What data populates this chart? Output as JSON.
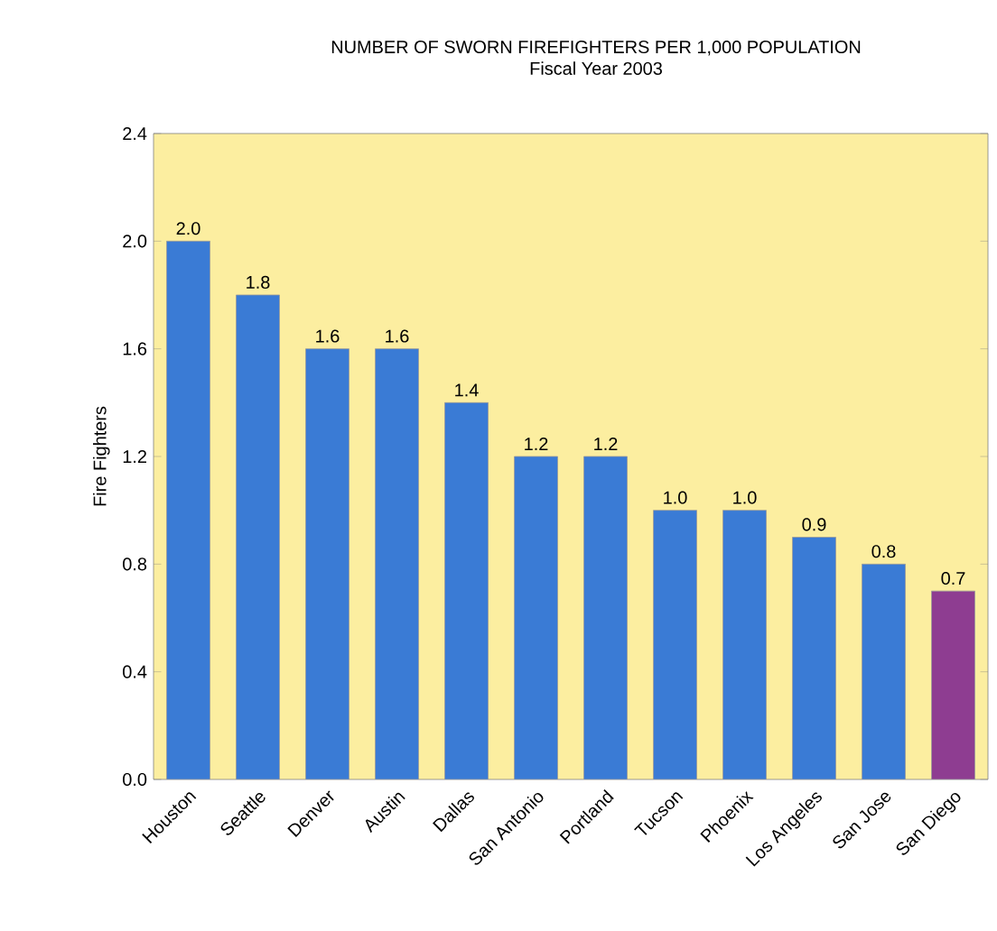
{
  "chart_data": {
    "type": "bar",
    "title": "NUMBER OF SWORN FIREFIGHTERS PER 1,000 POPULATION",
    "subtitle": "Fiscal Year 2003",
    "ylabel": "Fire Fighters",
    "categories": [
      "Houston",
      "Seattle",
      "Denver",
      "Austin",
      "Dallas",
      "San Antonio",
      "Portland",
      "Tucson",
      "Phoenix",
      "Los Angeles",
      "San Jose",
      "San Diego"
    ],
    "values": [
      2.0,
      1.8,
      1.6,
      1.6,
      1.4,
      1.2,
      1.2,
      1.0,
      1.0,
      0.9,
      0.8,
      0.7
    ],
    "colors": [
      "#3a7bd5",
      "#3a7bd5",
      "#3a7bd5",
      "#3a7bd5",
      "#3a7bd5",
      "#3a7bd5",
      "#3a7bd5",
      "#3a7bd5",
      "#3a7bd5",
      "#3a7bd5",
      "#3a7bd5",
      "#8e3d91"
    ],
    "ylim": [
      0,
      2.4
    ],
    "yticks": [
      {
        "value": 0,
        "label": "0.0"
      },
      {
        "value": 0.4,
        "label": "0.4"
      },
      {
        "value": 0.8,
        "label": "0.8"
      },
      {
        "value": 1.2,
        "label": "1.2"
      },
      {
        "value": 1.6,
        "label": "1.6"
      },
      {
        "value": 2.0,
        "label": "2.0"
      },
      {
        "value": 2.4,
        "label": "2.4"
      }
    ],
    "value_labels": [
      "2.0",
      "1.8",
      "1.6",
      "1.6",
      "1.4",
      "1.2",
      "1.2",
      "1.0",
      "1.0",
      "0.9",
      "0.8",
      "0.7"
    ],
    "grid": false
  }
}
